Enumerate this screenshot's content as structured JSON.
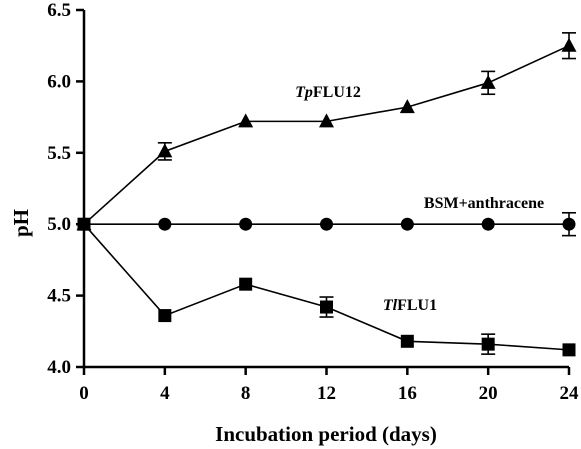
{
  "chart_data": {
    "type": "line",
    "xlabel": "Incubation period (days)",
    "ylabel": "pH",
    "xlim": [
      0,
      24
    ],
    "ylim": [
      4.0,
      6.5
    ],
    "x_ticks": [
      "0",
      "4",
      "8",
      "12",
      "16",
      "20",
      "24"
    ],
    "y_ticks": [
      "4.0",
      "4.5",
      "5.0",
      "5.5",
      "6.0",
      "6.5"
    ],
    "grid": false,
    "x": [
      0,
      4,
      8,
      12,
      16,
      20,
      24
    ],
    "series": [
      {
        "name_italic": "Tp",
        "name_rest": "FLU12",
        "marker": "triangle",
        "values": [
          5.0,
          5.51,
          5.72,
          5.72,
          5.82,
          5.99,
          6.25
        ],
        "errors": [
          0,
          0.06,
          0,
          0,
          0,
          0.08,
          0.09
        ]
      },
      {
        "name_italic": "",
        "name_rest": "BSM+anthracene",
        "marker": "circle",
        "values": [
          5.0,
          5.0,
          5.0,
          5.0,
          5.0,
          5.0,
          5.0
        ],
        "errors": [
          0,
          0,
          0,
          0,
          0,
          0,
          0.08
        ]
      },
      {
        "name_italic": "Tl",
        "name_rest": "FLU1",
        "marker": "square",
        "values": [
          5.0,
          4.36,
          4.58,
          4.42,
          4.18,
          4.16,
          4.12
        ],
        "errors": [
          0,
          0,
          0,
          0.07,
          0,
          0.07,
          0
        ]
      }
    ]
  }
}
